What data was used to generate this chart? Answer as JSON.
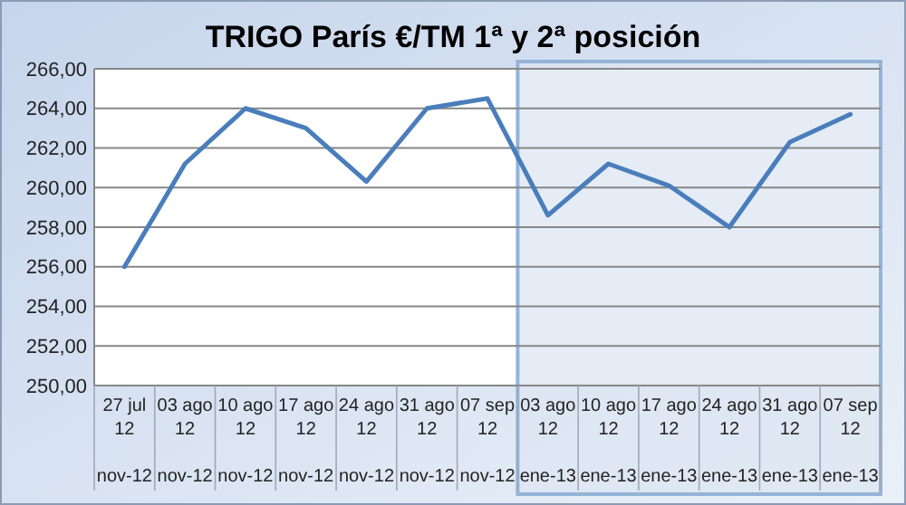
{
  "chart_data": {
    "type": "line",
    "title": "TRIGO  París €/TM 1ª y 2ª posición",
    "categories": [
      "27 jul 12\nnov-12",
      "03 ago 12\nnov-12",
      "10 ago 12\nnov-12",
      "17 ago 12\nnov-12",
      "24 ago 12\nnov-12",
      "31 ago 12\nnov-12",
      "07 sep 12\nnov-12",
      "03 ago 12\nene-13",
      "10 ago 12\nene-13",
      "17 ago 12\nene-13",
      "24 ago 12\nene-13",
      "31 ago 12\nene-13",
      "07 sep 12\nene-13"
    ],
    "series": [
      {
        "color": "#4a7ebb",
        "values": [
          256.0,
          261.2,
          264.0,
          263.0,
          260.3,
          264.0,
          264.5,
          258.6,
          261.2,
          260.1,
          258.0,
          262.3,
          263.7
        ]
      }
    ],
    "bands": [
      {
        "axis": "x",
        "from": "03 ago 12\nene-13",
        "to": "07 sep 12\nene-13",
        "color": "#dce6f2"
      }
    ],
    "ylim": [
      250,
      266
    ],
    "yticks": [
      {
        "value": 250,
        "label": "250,00"
      },
      {
        "value": 252,
        "label": "252,00"
      },
      {
        "value": 254,
        "label": "254,00"
      },
      {
        "value": 256,
        "label": "256,00"
      },
      {
        "value": 258,
        "label": "258,00"
      },
      {
        "value": 260,
        "label": "260,00"
      },
      {
        "value": 262,
        "label": "262,00"
      },
      {
        "value": 264,
        "label": "264,00"
      },
      {
        "value": 266,
        "label": "266,00"
      }
    ],
    "grid": "y",
    "marker": "none",
    "line_style": "solid"
  }
}
